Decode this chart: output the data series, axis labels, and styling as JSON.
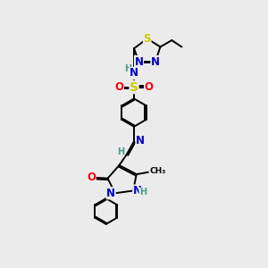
{
  "bg_color": "#ebebeb",
  "atom_colors": {
    "C": "#000000",
    "N": "#0000cc",
    "O": "#ff0000",
    "S": "#cccc00",
    "H": "#4a9a8a"
  },
  "bond_color": "#000000",
  "figsize": [
    3.0,
    3.0
  ],
  "dpi": 100,
  "lw": 1.4,
  "fs": 8.5
}
